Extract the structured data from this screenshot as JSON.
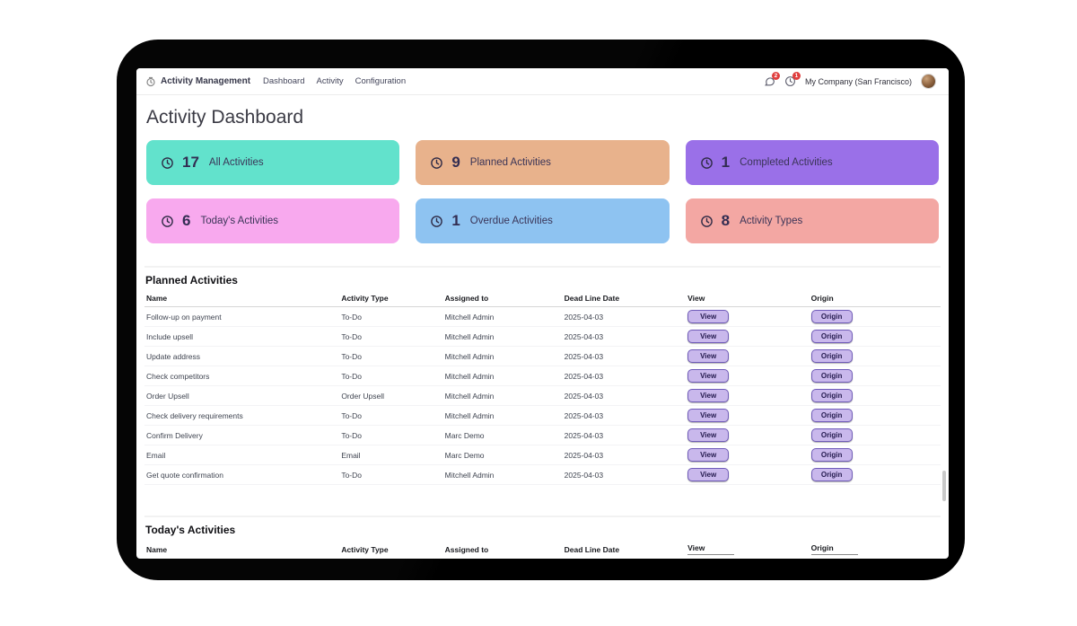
{
  "nav": {
    "app_name": "Activity Management",
    "menu": [
      "Dashboard",
      "Activity",
      "Configuration"
    ],
    "messages_badge": "2",
    "activities_badge": "1",
    "company": "My Company (San Francisco)"
  },
  "page": {
    "title": "Activity Dashboard"
  },
  "kpis": [
    {
      "value": "17",
      "label": "All Activities",
      "bg": "#62e2cc"
    },
    {
      "value": "9",
      "label": "Planned Activities",
      "bg": "#e8b28c"
    },
    {
      "value": "1",
      "label": "Completed Activities",
      "bg": "#9a70e8"
    },
    {
      "value": "6",
      "label": "Today's Activities",
      "bg": "#f8a9ee"
    },
    {
      "value": "1",
      "label": "Overdue Activities",
      "bg": "#8ec3f1"
    },
    {
      "value": "8",
      "label": "Activity Types",
      "bg": "#f3a7a3"
    }
  ],
  "planned": {
    "title": "Planned Activities",
    "columns": [
      "Name",
      "Activity Type",
      "Assigned to",
      "Dead Line Date",
      "View",
      "Origin"
    ],
    "view_label": "View",
    "origin_label": "Origin",
    "rows": [
      {
        "name": "Follow-up on payment",
        "type": "To-Do",
        "assigned": "Mitchell Admin",
        "deadline": "2025-04-03"
      },
      {
        "name": "Include upsell",
        "type": "To-Do",
        "assigned": "Mitchell Admin",
        "deadline": "2025-04-03"
      },
      {
        "name": "Update address",
        "type": "To-Do",
        "assigned": "Mitchell Admin",
        "deadline": "2025-04-03"
      },
      {
        "name": "Check competitors",
        "type": "To-Do",
        "assigned": "Mitchell Admin",
        "deadline": "2025-04-03"
      },
      {
        "name": "Order Upsell",
        "type": "Order Upsell",
        "assigned": "Mitchell Admin",
        "deadline": "2025-04-03"
      },
      {
        "name": "Check delivery requirements",
        "type": "To-Do",
        "assigned": "Mitchell Admin",
        "deadline": "2025-04-03"
      },
      {
        "name": "Confirm Delivery",
        "type": "To-Do",
        "assigned": "Marc Demo",
        "deadline": "2025-04-03"
      },
      {
        "name": "Email",
        "type": "Email",
        "assigned": "Marc Demo",
        "deadline": "2025-04-03"
      },
      {
        "name": "Get quote confirmation",
        "type": "To-Do",
        "assigned": "Mitchell Admin",
        "deadline": "2025-04-03"
      }
    ]
  },
  "today": {
    "title": "Today's Activities",
    "columns": [
      "Name",
      "Activity Type",
      "Assigned to",
      "Dead Line Date",
      "View",
      "Origin"
    ]
  }
}
